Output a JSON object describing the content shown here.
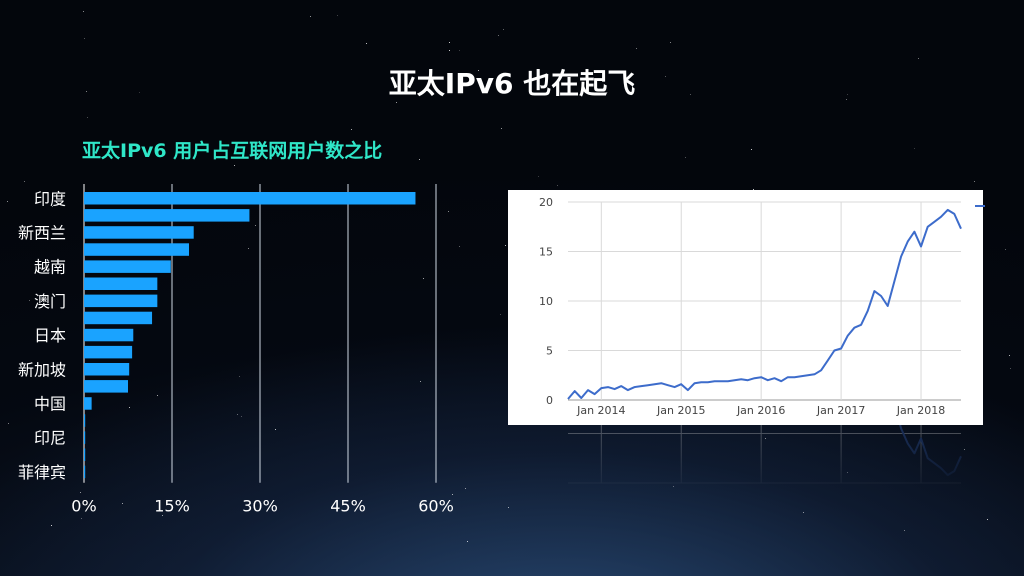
{
  "title": "亚太IPv6 也在起飞",
  "colors": {
    "bar": "#1aa3ff",
    "line": "#3d6ccb",
    "subtitle": "#2fe6c8"
  },
  "chart_data": [
    {
      "type": "bar",
      "orientation": "horizontal",
      "title": "亚太IPv6 用户占互联网用户数之比",
      "categories": [
        "印度",
        "",
        "新西兰",
        "",
        "越南",
        "",
        "澳门",
        "",
        "日本",
        "",
        "新加坡",
        "",
        "中国",
        "",
        "印尼",
        "",
        "菲律宾"
      ],
      "values": [
        56.5,
        28.2,
        18.7,
        17.9,
        14.8,
        12.5,
        12.5,
        11.6,
        8.4,
        8.2,
        7.7,
        7.5,
        1.3,
        0.1,
        0.05,
        0.03,
        0.02
      ],
      "xlim": [
        0,
        60
      ],
      "xticks": [
        "0%",
        "15%",
        "30%",
        "45%",
        "60%"
      ],
      "grid": true
    },
    {
      "type": "line",
      "ylim": [
        0,
        20
      ],
      "yticks": [
        "0",
        "5",
        "10",
        "15",
        "20"
      ],
      "xticks": [
        "Jan 2014",
        "Jan 2015",
        "Jan 2016",
        "Jan 2017",
        "Jan 2018"
      ],
      "grid": true,
      "x_start": "2013-08",
      "x_end": "2018-07",
      "series": [
        {
          "x": [
            "2013-08",
            "2013-09",
            "2013-10",
            "2013-11",
            "2013-12",
            "2014-01",
            "2014-02",
            "2014-03",
            "2014-04",
            "2014-05",
            "2014-06",
            "2014-07",
            "2014-08",
            "2014-09",
            "2014-10",
            "2014-11",
            "2014-12",
            "2015-01",
            "2015-02",
            "2015-03",
            "2015-04",
            "2015-05",
            "2015-06",
            "2015-07",
            "2015-08",
            "2015-09",
            "2015-10",
            "2015-11",
            "2015-12",
            "2016-01",
            "2016-02",
            "2016-03",
            "2016-04",
            "2016-05",
            "2016-06",
            "2016-07",
            "2016-08",
            "2016-09",
            "2016-10",
            "2016-11",
            "2016-12",
            "2017-01",
            "2017-02",
            "2017-03",
            "2017-04",
            "2017-05",
            "2017-06",
            "2017-07",
            "2017-08",
            "2017-09",
            "2017-10",
            "2017-11",
            "2017-12",
            "2018-01",
            "2018-02",
            "2018-03",
            "2018-04",
            "2018-05",
            "2018-06",
            "2018-07"
          ],
          "values": [
            0.1,
            0.9,
            0.2,
            1.0,
            0.6,
            1.2,
            1.3,
            1.1,
            1.4,
            1.0,
            1.3,
            1.4,
            1.5,
            1.6,
            1.7,
            1.5,
            1.3,
            1.6,
            1.0,
            1.7,
            1.8,
            1.8,
            1.9,
            1.9,
            1.9,
            2.0,
            2.1,
            2.0,
            2.2,
            2.3,
            2.0,
            2.2,
            1.9,
            2.3,
            2.3,
            2.4,
            2.5,
            2.6,
            3.0,
            4.0,
            5.0,
            5.2,
            6.5,
            7.3,
            7.6,
            9.0,
            11.0,
            10.5,
            9.5,
            12.0,
            14.5,
            16.0,
            17.0,
            15.5,
            17.5,
            18.0,
            18.5,
            19.2,
            18.8,
            17.3
          ]
        }
      ]
    }
  ]
}
